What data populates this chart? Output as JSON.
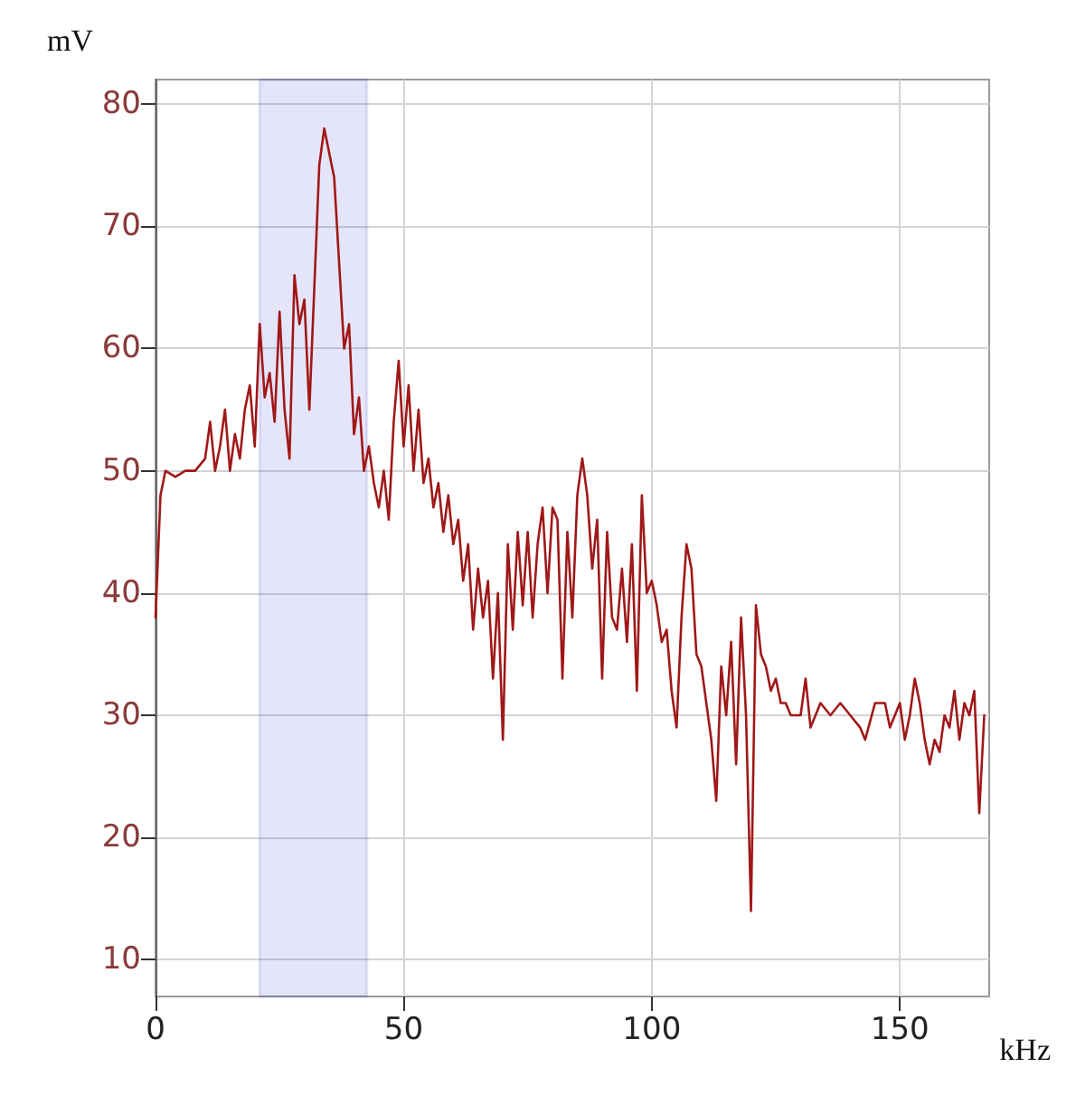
{
  "chart_data": {
    "type": "line",
    "xlabel": "kHz",
    "ylabel": "mV",
    "x": [
      0,
      1,
      2,
      4,
      6,
      8,
      10,
      11,
      12,
      13,
      14,
      15,
      16,
      17,
      18,
      19,
      20,
      21,
      22,
      23,
      24,
      25,
      26,
      27,
      28,
      29,
      30,
      31,
      32,
      33,
      34,
      35,
      36,
      37,
      38,
      39,
      40,
      41,
      42,
      43,
      44,
      45,
      46,
      47,
      48,
      49,
      50,
      51,
      52,
      53,
      54,
      55,
      56,
      57,
      58,
      59,
      60,
      61,
      62,
      63,
      64,
      65,
      66,
      67,
      68,
      69,
      70,
      71,
      72,
      73,
      74,
      75,
      76,
      77,
      78,
      79,
      80,
      81,
      82,
      83,
      84,
      85,
      86,
      87,
      88,
      89,
      90,
      91,
      92,
      93,
      94,
      95,
      96,
      97,
      98,
      99,
      100,
      101,
      102,
      103,
      104,
      105,
      106,
      107,
      108,
      109,
      110,
      111,
      112,
      113,
      114,
      115,
      116,
      117,
      118,
      119,
      120,
      121,
      122,
      123,
      124,
      125,
      126,
      127,
      128,
      130,
      131,
      132,
      134,
      136,
      138,
      140,
      142,
      143,
      145,
      147,
      148,
      149,
      150,
      151,
      152,
      153,
      154,
      155,
      156,
      157,
      158,
      159,
      160,
      161,
      162,
      163,
      164,
      165,
      166,
      167
    ],
    "series": [
      {
        "color": "#a01818",
        "values": [
          38,
          48,
          50,
          49.5,
          50,
          50,
          51,
          54,
          50,
          52,
          55,
          50,
          53,
          51,
          55,
          57,
          52,
          62,
          56,
          58,
          54,
          63,
          55,
          51,
          66,
          62,
          64,
          55,
          65,
          75,
          78,
          76,
          74,
          67,
          60,
          62,
          53,
          56,
          50,
          52,
          49,
          47,
          50,
          46,
          54,
          59,
          52,
          57,
          50,
          55,
          49,
          51,
          47,
          49,
          45,
          48,
          44,
          46,
          41,
          44,
          37,
          42,
          38,
          41,
          33,
          40,
          28,
          44,
          37,
          45,
          39,
          45,
          38,
          44,
          47,
          40,
          47,
          46,
          33,
          45,
          38,
          48,
          51,
          48,
          42,
          46,
          33,
          45,
          38,
          37,
          42,
          36,
          44,
          32,
          48,
          40,
          41,
          39,
          36,
          37,
          32,
          29,
          38,
          44,
          42,
          35,
          34,
          31,
          28,
          23,
          34,
          30,
          36,
          26,
          38,
          30,
          14,
          39,
          35,
          34,
          32,
          33,
          31,
          31,
          30,
          30,
          33,
          29,
          31,
          30,
          31,
          30,
          29,
          28,
          31,
          31,
          29,
          30,
          31,
          28,
          30,
          33,
          31,
          28,
          26,
          28,
          27,
          30,
          29,
          32,
          28,
          31,
          30,
          32,
          22,
          30
        ]
      }
    ],
    "xlim": [
      0,
      168
    ],
    "ylim": [
      7,
      82
    ],
    "xticks": [
      0,
      50,
      100,
      150
    ],
    "yticks": [
      10,
      20,
      30,
      40,
      50,
      60,
      70,
      80
    ],
    "grid": true,
    "bands": [
      {
        "axis": "x",
        "from": 21,
        "to": 42.6,
        "color": "#2a2acc"
      }
    ]
  }
}
